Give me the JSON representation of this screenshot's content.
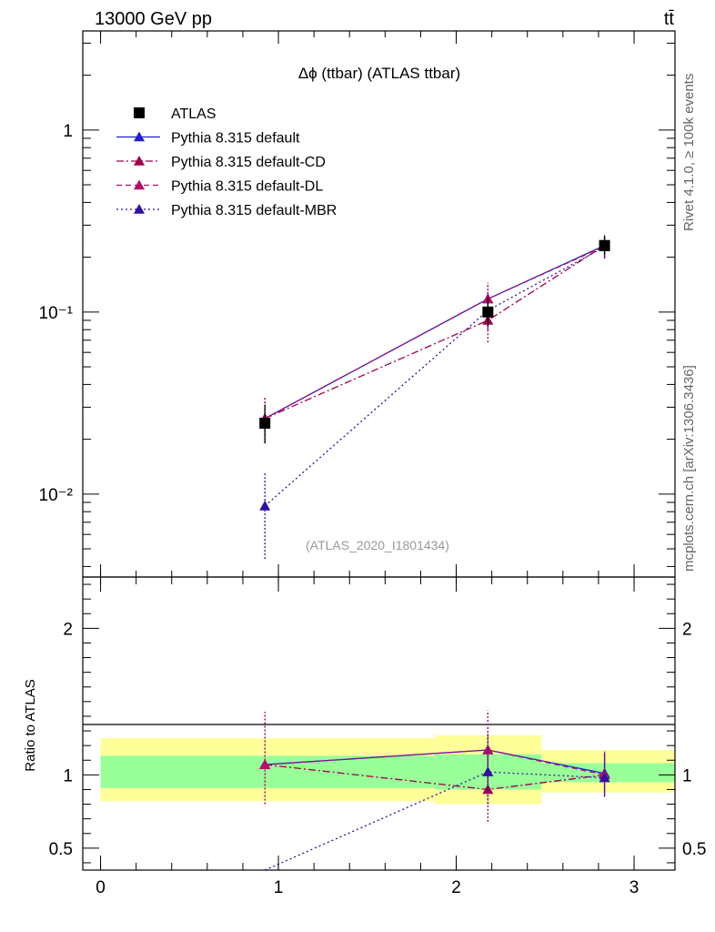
{
  "header": {
    "left": "13000 GeV pp",
    "right": "tt̄"
  },
  "side_texts": {
    "rivet": "Rivet 4.1.0, ≥ 100k events",
    "source": "mcplots.cern.ch [arXiv:1306.3436]"
  },
  "watermark": "(ATLAS_2020_I1801434)",
  "colors": {
    "atlas": "#000000",
    "default": "#1f1fd0",
    "cd": "#a0004f",
    "dl": "#b0106a",
    "mbr": "#3010a0",
    "band_inner": "#99ff99",
    "band_outer": "#ffff99"
  },
  "chart_data": [
    {
      "type": "scatter",
      "title": "Δϕ (ttbar) (ATLAS ttbar)",
      "yscale": "log",
      "ylim": [
        0.0035,
        3.5
      ],
      "xlim": [
        -0.1,
        3.23
      ],
      "y_ticks": [
        {
          "value": 1,
          "label": "1"
        },
        {
          "value": 0.1,
          "label": "10⁻¹"
        },
        {
          "value": 0.01,
          "label": "10⁻²"
        }
      ],
      "legend_position": "top-left",
      "series": [
        {
          "name": "ATLAS",
          "key": "atlas",
          "marker": "square",
          "line": "none",
          "x": [
            0.924,
            2.178,
            2.834
          ],
          "y": [
            0.0245,
            0.1,
            0.232
          ],
          "ylow": [
            0.019,
            0.083,
            0.205
          ],
          "yhigh": [
            0.031,
            0.12,
            0.262
          ]
        },
        {
          "name": "Pythia 8.315 default",
          "key": "default",
          "marker": "triangle",
          "line": "solid",
          "x": [
            0.924,
            2.178,
            2.834
          ],
          "y": [
            0.026,
            0.118,
            0.232
          ],
          "ylow": [
            0.019,
            0.095,
            0.2
          ],
          "yhigh": [
            0.034,
            0.145,
            0.265
          ]
        },
        {
          "name": "Pythia 8.315 default-CD",
          "key": "cd",
          "marker": "triangle",
          "line": "dashdot",
          "x": [
            0.924,
            2.178,
            2.834
          ],
          "y": [
            0.026,
            0.09,
            0.232
          ],
          "ylow": [
            0.019,
            0.068,
            0.2
          ],
          "yhigh": [
            0.034,
            0.115,
            0.265
          ]
        },
        {
          "name": "Pythia 8.315 default-DL",
          "key": "dl",
          "marker": "triangle",
          "line": "dashed",
          "x": [
            0.924,
            2.178,
            2.834
          ],
          "y": [
            0.026,
            0.118,
            0.23
          ],
          "ylow": [
            0.019,
            0.095,
            0.2
          ],
          "yhigh": [
            0.034,
            0.145,
            0.262
          ]
        },
        {
          "name": "Pythia 8.315 default-MBR",
          "key": "mbr",
          "marker": "triangle",
          "line": "dotted",
          "x": [
            0.924,
            2.178,
            2.834
          ],
          "y": [
            0.0086,
            0.102,
            0.228
          ],
          "ylow": [
            0.0044,
            0.08,
            0.196
          ],
          "yhigh": [
            0.013,
            0.128,
            0.26
          ]
        }
      ]
    },
    {
      "type": "scatter",
      "ylabel": "Ratio to ATLAS",
      "xlim": [
        -0.1,
        3.23
      ],
      "ylim": [
        0.35,
        2.35
      ],
      "x_ticks": [
        {
          "value": 0,
          "label": "0"
        },
        {
          "value": 1,
          "label": "1"
        },
        {
          "value": 2,
          "label": "2"
        },
        {
          "value": 3,
          "label": "3"
        }
      ],
      "y_ticks": [
        {
          "value": 2,
          "label": "2"
        },
        {
          "value": 1,
          "label": "1"
        },
        {
          "value": 0.5,
          "label": "0.5"
        }
      ],
      "bands": [
        {
          "x0": 0,
          "x1": 1.88,
          "inner": [
            0.91,
            1.13
          ],
          "outer": [
            0.82,
            1.25
          ]
        },
        {
          "x0": 1.88,
          "x1": 2.48,
          "inner": [
            0.9,
            1.14
          ],
          "outer": [
            0.8,
            1.27
          ]
        },
        {
          "x0": 2.48,
          "x1": 3.23,
          "inner": [
            0.95,
            1.08
          ],
          "outer": [
            0.88,
            1.17
          ]
        }
      ],
      "series": [
        {
          "key": "default",
          "line": "solid",
          "x": [
            0.924,
            2.178,
            2.834
          ],
          "y": [
            1.07,
            1.17,
            1.01
          ],
          "ylow": [
            0.8,
            0.94,
            0.87
          ],
          "yhigh": [
            1.43,
            1.44,
            1.16
          ]
        },
        {
          "key": "cd",
          "line": "dashdot",
          "x": [
            0.924,
            2.178,
            2.834
          ],
          "y": [
            1.07,
            0.9,
            1.0
          ],
          "ylow": [
            0.8,
            0.68,
            0.86
          ],
          "yhigh": [
            1.43,
            1.15,
            1.16
          ]
        },
        {
          "key": "dl",
          "line": "dashed",
          "x": [
            0.924,
            2.178,
            2.834
          ],
          "y": [
            1.07,
            1.17,
            1.0
          ],
          "ylow": [
            0.8,
            0.94,
            0.86
          ],
          "yhigh": [
            1.43,
            1.44,
            1.16
          ]
        },
        {
          "key": "mbr",
          "line": "dotted",
          "x": [
            0.924,
            2.178,
            2.834
          ],
          "y": [
            0.35,
            1.02,
            0.98
          ],
          "ylow": [
            0.35,
            0.8,
            0.85
          ],
          "yhigh": [
            0.35,
            1.28,
            1.15
          ]
        }
      ]
    }
  ]
}
